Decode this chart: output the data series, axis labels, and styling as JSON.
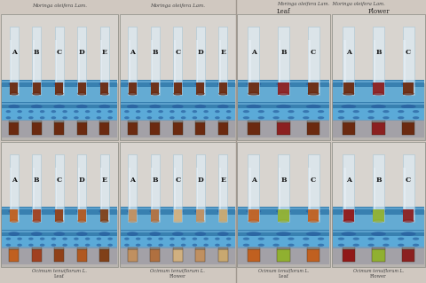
{
  "figure_width": 4.8,
  "figure_height": 3.19,
  "dpi": 100,
  "bg_color": "#d0c8c0",
  "panel_border": "#888880",
  "wall_color_upper": "#dddbd8",
  "wall_color_lower": "#c8c5c0",
  "rack_blue": "#5baad8",
  "rack_blue_dark": "#3880b0",
  "rack_blue_light": "#80c0e8",
  "rack_hole": "#2860a0",
  "tube_glass": "#ddeef8",
  "tube_glass_edge": "#90b8d0",
  "tube_shine": "#f0f8ff",
  "labels_5": [
    "A",
    "B",
    "C",
    "D",
    "E"
  ],
  "labels_3": [
    "A",
    "B",
    "C"
  ],
  "title_moringa_leaf": "Moringa oleifera Lam.",
  "title_moringa_flower": "Moringa oleifera Lam.",
  "title_right_moringa": "Moringa oleifera Lam. Moringa oleifera Lam.",
  "subtitle_leaf": "Leaf",
  "subtitle_flower": "Flower",
  "bottom_left1": "Ocimum tenuiflorum L.",
  "bottom_left1b": "Leaf",
  "bottom_left2": "Ocimum tenuiflorum L.",
  "bottom_left2b": "Flower",
  "bottom_right1": "Ocimum tenuiflorum L.",
  "bottom_right1b": "Leaf",
  "bottom_right2": "Ocimum tenuiflorum L.",
  "bottom_right2b": "Flower",
  "liq_tl": [
    "#6b2a10",
    "#6b2a10",
    "#6b2a10",
    "#6b2a10",
    "#6b2a10"
  ],
  "liq_tm": [
    "#6b2a10",
    "#6b2a10",
    "#6b2a10",
    "#6b2a10",
    "#6b2a10"
  ],
  "liq_bl": [
    "#c06020",
    "#a04020",
    "#904018",
    "#b05820",
    "#804018"
  ],
  "liq_bm": [
    "#c09060",
    "#b07040",
    "#d0b080",
    "#c09060",
    "#c8a870"
  ],
  "liq_r1l": [
    "#6b2a10",
    "#8b2020",
    "#6b2a10"
  ],
  "liq_r1f": [
    "#6b2a10",
    "#8b2020",
    "#6b2a10"
  ],
  "liq_r2l": [
    "#c06020",
    "#90b030",
    "#c06020"
  ],
  "liq_r2f": [
    "#901818",
    "#90b030",
    "#8b2020"
  ]
}
